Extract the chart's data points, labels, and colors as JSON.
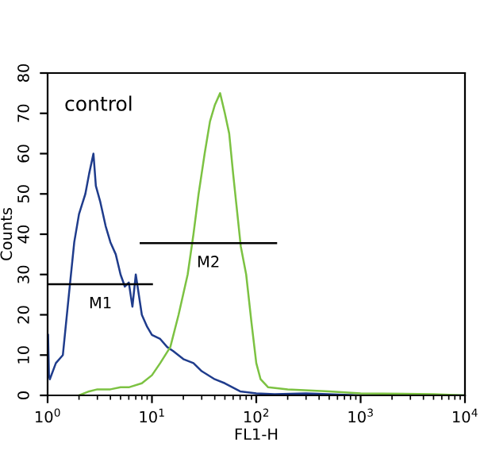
{
  "chart_data": {
    "type": "line",
    "xlabel": "FL1-H",
    "ylabel": "Counts",
    "log": "x",
    "xlim": [
      1,
      10000
    ],
    "ylim": [
      0,
      80
    ],
    "xticks": [
      {
        "value": 1,
        "label": "10$^{0}$"
      },
      {
        "value": 10,
        "label": "10$^{1}$"
      },
      {
        "value": 100,
        "label": "10$^{2}$"
      },
      {
        "value": 1000,
        "label": "10$^{3}$"
      },
      {
        "value": 10000,
        "label": "10$^{4}$"
      }
    ],
    "yticks": [
      0,
      10,
      20,
      30,
      40,
      50,
      60,
      70,
      80
    ],
    "grid": false,
    "legend": false,
    "series": [
      {
        "color": "#1f3c8c",
        "x": [
          1.01,
          1.03,
          1.05,
          1.2,
          1.4,
          1.6,
          1.8,
          2.0,
          2.3,
          2.5,
          2.75,
          2.9,
          3.2,
          3.6,
          4,
          4.5,
          5,
          5.5,
          6,
          6.5,
          7,
          8,
          9,
          10,
          12,
          14,
          16,
          20,
          25,
          30,
          40,
          50,
          70,
          100,
          150,
          300,
          1000,
          10000
        ],
        "values": [
          15,
          5,
          4,
          8,
          10,
          25,
          38,
          45,
          50,
          55,
          60,
          52,
          48,
          42,
          38,
          35,
          30,
          27,
          28,
          22,
          30,
          20,
          17,
          15,
          14,
          12,
          11,
          9,
          8,
          6,
          4,
          3,
          1,
          0.5,
          0.3,
          0.5,
          0,
          0
        ]
      },
      {
        "color": "#7cc242",
        "x": [
          2.0,
          2.5,
          3,
          4,
          5,
          6,
          8,
          10,
          12,
          15,
          18,
          22,
          25,
          28,
          32,
          36,
          40,
          45,
          50,
          55,
          60,
          71,
          80,
          90,
          100,
          110,
          130,
          200,
          500,
          1000,
          5000,
          10000
        ],
        "values": [
          0,
          1,
          1.5,
          1.5,
          2,
          2,
          3,
          5,
          8,
          12,
          20,
          30,
          40,
          50,
          60,
          68,
          72,
          75,
          70,
          65,
          55,
          37,
          30,
          18,
          8,
          4,
          2,
          1.5,
          1,
          0.5,
          0.3,
          0
        ]
      },
      {
        "color": "#000000",
        "x": [
          1.03,
          10
        ],
        "values": [
          27.6,
          27.6
        ]
      },
      {
        "color": "#000000",
        "x": [
          7.8,
          155
        ],
        "values": [
          37.8,
          37.8
        ]
      }
    ],
    "annotations": [
      "control",
      "M1",
      "M2"
    ]
  }
}
